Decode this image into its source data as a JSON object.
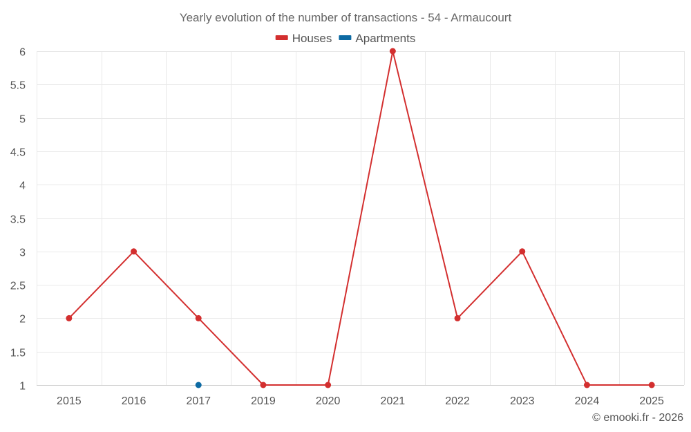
{
  "chart_data": {
    "type": "line",
    "title": "Yearly evolution of the number of transactions - 54 - Armaucourt",
    "categories": [
      "2015",
      "2016",
      "2017",
      "2019",
      "2020",
      "2021",
      "2022",
      "2023",
      "2024",
      "2025"
    ],
    "series": [
      {
        "name": "Houses",
        "color": "#d32f2f",
        "values": [
          2,
          3,
          2,
          1,
          1,
          6,
          2,
          3,
          1,
          1
        ]
      },
      {
        "name": "Apartments",
        "color": "#0d6aa3",
        "values": [
          null,
          null,
          1,
          null,
          null,
          null,
          null,
          null,
          null,
          null
        ]
      }
    ],
    "ylim": [
      1,
      6
    ],
    "yticks": [
      "1",
      "1.5",
      "2",
      "2.5",
      "3",
      "3.5",
      "4",
      "4.5",
      "5",
      "5.5",
      "6"
    ],
    "xlabel": "",
    "ylabel": "",
    "grid": true,
    "legend_position": "top-center"
  },
  "credit": "© emooki.fr - 2026"
}
